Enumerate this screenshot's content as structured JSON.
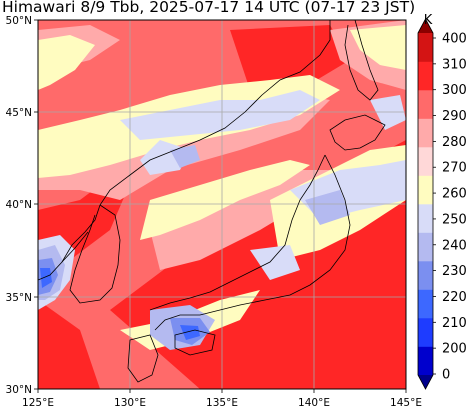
{
  "title": "Himawari 8/9 Tbb, 2025-07-17 14 UTC (07-17 23 JST)",
  "chart_data": {
    "type": "map",
    "variable": "Brightness temperature (Tbb)",
    "lon_range": [
      125,
      145
    ],
    "lat_range": [
      30,
      50
    ],
    "lon_ticks": [
      "125°E",
      "130°E",
      "135°E",
      "140°E",
      "145°E"
    ],
    "lat_ticks": [
      "30°N",
      "35°N",
      "40°N",
      "45°N",
      "50°N"
    ],
    "grid": true,
    "colorbar": {
      "unit": "K",
      "levels": [
        200,
        210,
        220,
        230,
        240,
        250,
        260,
        270,
        280,
        290,
        300,
        310
      ],
      "tick_labels": [
        "0",
        "200",
        "210",
        "220",
        "230",
        "240",
        "250",
        "260",
        "270",
        "280",
        "290",
        "300",
        "310",
        "400"
      ],
      "colors": [
        "#00008b",
        "#0000cd",
        "#1e3cff",
        "#3d68ff",
        "#7b8ff0",
        "#b4baf0",
        "#d8dcf8",
        "#fffcc0",
        "#ffd8d8",
        "#ffaaaa",
        "#ff6a6a",
        "#ff2626",
        "#d41414",
        "#8b0000"
      ],
      "extend": "both"
    }
  }
}
